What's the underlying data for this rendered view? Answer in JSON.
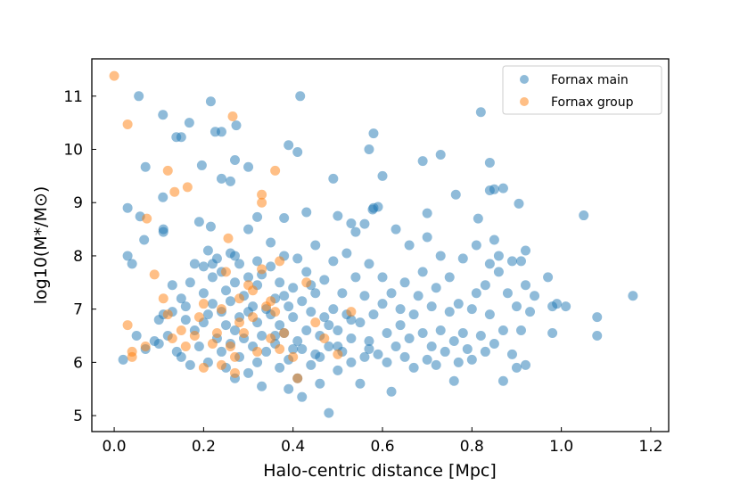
{
  "chart_data": {
    "type": "scatter",
    "title": "",
    "xlabel": "Halo-centric distance [Mpc]",
    "ylabel": "log10(M*/M⊙)",
    "xlim": [
      -0.05,
      1.24
    ],
    "ylim": [
      4.7,
      11.7
    ],
    "xticks": [
      "0.0",
      "0.2",
      "0.4",
      "0.6",
      "0.8",
      "1.0",
      "1.2"
    ],
    "xtick_values": [
      0,
      0.2,
      0.4,
      0.6,
      0.8,
      1.0,
      1.2
    ],
    "yticks": [
      "5",
      "6",
      "7",
      "8",
      "9",
      "10",
      "11"
    ],
    "ytick_values": [
      5,
      6,
      7,
      8,
      9,
      10,
      11
    ],
    "grid": false,
    "legend_position": "top-right",
    "series": [
      {
        "name": "Fornax main",
        "color": "#1f77b4",
        "points": [
          [
            0.055,
            11.0
          ],
          [
            0.416,
            11.0
          ],
          [
            0.216,
            10.9
          ],
          [
            0.109,
            10.65
          ],
          [
            0.168,
            10.5
          ],
          [
            0.139,
            10.23
          ],
          [
            0.15,
            10.23
          ],
          [
            0.226,
            10.33
          ],
          [
            0.24,
            10.33
          ],
          [
            0.273,
            10.45
          ],
          [
            0.58,
            10.3
          ],
          [
            0.57,
            10.0
          ],
          [
            0.39,
            10.08
          ],
          [
            0.41,
            9.95
          ],
          [
            0.82,
            10.7
          ],
          [
            0.73,
            9.9
          ],
          [
            0.69,
            9.78
          ],
          [
            0.84,
            9.75
          ],
          [
            0.85,
            9.25
          ],
          [
            0.87,
            9.27
          ],
          [
            0.84,
            9.23
          ],
          [
            0.905,
            8.98
          ],
          [
            1.05,
            8.76
          ],
          [
            0.6,
            9.5
          ],
          [
            0.49,
            9.45
          ],
          [
            0.196,
            9.7
          ],
          [
            0.27,
            9.8
          ],
          [
            0.3,
            9.67
          ],
          [
            0.24,
            9.45
          ],
          [
            0.07,
            9.67
          ],
          [
            0.109,
            9.1
          ],
          [
            0.26,
            9.4
          ],
          [
            0.03,
            8.9
          ],
          [
            0.058,
            8.74
          ],
          [
            0.067,
            8.3
          ],
          [
            0.19,
            8.64
          ],
          [
            0.216,
            8.55
          ],
          [
            0.38,
            8.71
          ],
          [
            0.32,
            8.73
          ],
          [
            0.43,
            8.82
          ],
          [
            0.53,
            8.61
          ],
          [
            0.578,
            8.87
          ],
          [
            0.59,
            8.92
          ],
          [
            0.7,
            8.8
          ],
          [
            0.814,
            8.7
          ],
          [
            0.764,
            9.15
          ],
          [
            0.11,
            8.45
          ],
          [
            0.11,
            8.5
          ],
          [
            0.03,
            8.0
          ],
          [
            0.04,
            7.85
          ],
          [
            0.02,
            6.05
          ],
          [
            0.05,
            6.5
          ],
          [
            0.07,
            6.25
          ],
          [
            0.09,
            6.4
          ],
          [
            0.1,
            6.35
          ],
          [
            0.1,
            6.8
          ],
          [
            0.11,
            6.9
          ],
          [
            0.12,
            6.5
          ],
          [
            0.13,
            6.95
          ],
          [
            0.13,
            7.45
          ],
          [
            0.14,
            6.2
          ],
          [
            0.15,
            6.1
          ],
          [
            0.15,
            7.2
          ],
          [
            0.16,
            6.8
          ],
          [
            0.16,
            7.05
          ],
          [
            0.17,
            5.95
          ],
          [
            0.17,
            7.5
          ],
          [
            0.18,
            6.6
          ],
          [
            0.18,
            7.85
          ],
          [
            0.19,
            6.3
          ],
          [
            0.2,
            6.75
          ],
          [
            0.2,
            7.3
          ],
          [
            0.2,
            7.8
          ],
          [
            0.21,
            6.0
          ],
          [
            0.21,
            6.9
          ],
          [
            0.21,
            8.1
          ],
          [
            0.22,
            7.1
          ],
          [
            0.22,
            7.6
          ],
          [
            0.23,
            6.45
          ],
          [
            0.23,
            7.95
          ],
          [
            0.24,
            6.2
          ],
          [
            0.24,
            6.95
          ],
          [
            0.24,
            7.7
          ],
          [
            0.25,
            5.9
          ],
          [
            0.25,
            6.7
          ],
          [
            0.25,
            7.35
          ],
          [
            0.26,
            6.35
          ],
          [
            0.26,
            7.15
          ],
          [
            0.26,
            8.05
          ],
          [
            0.27,
            5.7
          ],
          [
            0.27,
            6.6
          ],
          [
            0.27,
            7.5
          ],
          [
            0.28,
            6.1
          ],
          [
            0.28,
            6.85
          ],
          [
            0.28,
            7.85
          ],
          [
            0.29,
            6.45
          ],
          [
            0.29,
            7.25
          ],
          [
            0.3,
            5.8
          ],
          [
            0.3,
            6.95
          ],
          [
            0.3,
            7.6
          ],
          [
            0.3,
            8.5
          ],
          [
            0.31,
            6.3
          ],
          [
            0.31,
            7.05
          ],
          [
            0.32,
            6.0
          ],
          [
            0.32,
            6.75
          ],
          [
            0.32,
            7.45
          ],
          [
            0.33,
            5.55
          ],
          [
            0.33,
            6.5
          ],
          [
            0.33,
            7.65
          ],
          [
            0.34,
            6.2
          ],
          [
            0.34,
            7.0
          ],
          [
            0.35,
            6.9
          ],
          [
            0.35,
            7.8
          ],
          [
            0.35,
            8.25
          ],
          [
            0.36,
            6.35
          ],
          [
            0.36,
            7.2
          ],
          [
            0.37,
            5.9
          ],
          [
            0.37,
            6.7
          ],
          [
            0.37,
            7.5
          ],
          [
            0.38,
            6.55
          ],
          [
            0.38,
            8.0
          ],
          [
            0.39,
            5.5
          ],
          [
            0.39,
            6.05
          ],
          [
            0.39,
            7.05
          ],
          [
            0.4,
            6.85
          ],
          [
            0.4,
            7.4
          ],
          [
            0.41,
            5.7
          ],
          [
            0.41,
            6.4
          ],
          [
            0.41,
            7.95
          ],
          [
            0.42,
            5.35
          ],
          [
            0.42,
            6.25
          ],
          [
            0.42,
            7.15
          ],
          [
            0.43,
            6.6
          ],
          [
            0.43,
            7.7
          ],
          [
            0.44,
            5.95
          ],
          [
            0.44,
            6.95
          ],
          [
            0.45,
            6.15
          ],
          [
            0.45,
            7.3
          ],
          [
            0.45,
            8.2
          ],
          [
            0.46,
            5.6
          ],
          [
            0.46,
            6.5
          ],
          [
            0.47,
            6.85
          ],
          [
            0.47,
            7.55
          ],
          [
            0.48,
            5.05
          ],
          [
            0.48,
            6.3
          ],
          [
            0.49,
            7.0
          ],
          [
            0.49,
            7.9
          ],
          [
            0.5,
            5.85
          ],
          [
            0.5,
            6.6
          ],
          [
            0.5,
            8.75
          ],
          [
            0.51,
            6.2
          ],
          [
            0.51,
            7.3
          ],
          [
            0.52,
            6.9
          ],
          [
            0.52,
            8.05
          ],
          [
            0.53,
            6.0
          ],
          [
            0.53,
            6.45
          ],
          [
            0.54,
            7.6
          ],
          [
            0.54,
            8.45
          ],
          [
            0.55,
            5.6
          ],
          [
            0.55,
            6.75
          ],
          [
            0.56,
            6.1
          ],
          [
            0.56,
            7.25
          ],
          [
            0.56,
            8.6
          ],
          [
            0.57,
            6.4
          ],
          [
            0.57,
            7.85
          ],
          [
            0.58,
            6.9
          ],
          [
            0.58,
            8.9
          ],
          [
            0.59,
            6.15
          ],
          [
            0.6,
            7.1
          ],
          [
            0.6,
            7.6
          ],
          [
            0.61,
            6.0
          ],
          [
            0.61,
            6.55
          ],
          [
            0.62,
            5.45
          ],
          [
            0.62,
            7.3
          ],
          [
            0.63,
            6.3
          ],
          [
            0.63,
            8.5
          ],
          [
            0.64,
            6.7
          ],
          [
            0.64,
            7.0
          ],
          [
            0.65,
            6.1
          ],
          [
            0.65,
            7.5
          ],
          [
            0.66,
            6.45
          ],
          [
            0.66,
            8.2
          ],
          [
            0.67,
            5.9
          ],
          [
            0.67,
            6.9
          ],
          [
            0.68,
            7.25
          ],
          [
            0.69,
            6.55
          ],
          [
            0.69,
            7.7
          ],
          [
            0.7,
            6.05
          ],
          [
            0.7,
            8.35
          ],
          [
            0.71,
            6.3
          ],
          [
            0.71,
            7.05
          ],
          [
            0.72,
            5.95
          ],
          [
            0.72,
            7.4
          ],
          [
            0.73,
            6.6
          ],
          [
            0.73,
            8.0
          ],
          [
            0.74,
            6.2
          ],
          [
            0.75,
            6.95
          ],
          [
            0.75,
            7.6
          ],
          [
            0.76,
            6.4
          ],
          [
            0.76,
            5.65
          ],
          [
            0.77,
            6.0
          ],
          [
            0.77,
            7.1
          ],
          [
            0.78,
            6.55
          ],
          [
            0.78,
            7.95
          ],
          [
            0.79,
            6.25
          ],
          [
            0.8,
            7.0
          ],
          [
            0.8,
            6.05
          ],
          [
            0.81,
            7.3
          ],
          [
            0.81,
            8.2
          ],
          [
            0.82,
            6.5
          ],
          [
            0.83,
            6.2
          ],
          [
            0.83,
            7.45
          ],
          [
            0.84,
            7.85
          ],
          [
            0.84,
            6.9
          ],
          [
            0.85,
            8.3
          ],
          [
            0.85,
            6.35
          ],
          [
            0.86,
            7.7
          ],
          [
            0.86,
            8.0
          ],
          [
            0.87,
            6.6
          ],
          [
            0.87,
            5.65
          ],
          [
            0.88,
            7.3
          ],
          [
            0.89,
            6.15
          ],
          [
            0.89,
            7.9
          ],
          [
            0.9,
            5.9
          ],
          [
            0.9,
            7.05
          ],
          [
            0.91,
            7.9
          ],
          [
            0.91,
            6.6
          ],
          [
            0.92,
            5.95
          ],
          [
            0.92,
            7.45
          ],
          [
            0.92,
            8.1
          ],
          [
            0.93,
            6.95
          ],
          [
            0.94,
            7.25
          ],
          [
            0.97,
            7.6
          ],
          [
            0.98,
            7.05
          ],
          [
            0.98,
            6.55
          ],
          [
            0.99,
            7.1
          ],
          [
            1.01,
            7.05
          ],
          [
            1.08,
            6.85
          ],
          [
            1.08,
            6.5
          ],
          [
            1.16,
            7.25
          ],
          [
            0.5,
            6.3
          ],
          [
            0.46,
            6.1
          ],
          [
            0.4,
            6.25
          ],
          [
            0.36,
            6.5
          ],
          [
            0.48,
            6.7
          ],
          [
            0.53,
            6.8
          ],
          [
            0.44,
            7.45
          ],
          [
            0.38,
            7.25
          ],
          [
            0.57,
            6.25
          ],
          [
            0.32,
            7.9
          ],
          [
            0.27,
            8.0
          ],
          [
            0.22,
            7.85
          ]
        ]
      },
      {
        "name": "Fornax group",
        "color": "#ff7f0e",
        "points": [
          [
            0.0,
            11.38
          ],
          [
            0.03,
            10.47
          ],
          [
            0.265,
            10.62
          ],
          [
            0.12,
            9.6
          ],
          [
            0.135,
            9.2
          ],
          [
            0.164,
            9.29
          ],
          [
            0.36,
            9.6
          ],
          [
            0.33,
            9.15
          ],
          [
            0.33,
            9.0
          ],
          [
            0.073,
            8.7
          ],
          [
            0.255,
            8.33
          ],
          [
            0.09,
            7.65
          ],
          [
            0.11,
            7.2
          ],
          [
            0.13,
            6.45
          ],
          [
            0.03,
            6.7
          ],
          [
            0.04,
            6.2
          ],
          [
            0.04,
            6.1
          ],
          [
            0.07,
            6.3
          ],
          [
            0.12,
            6.9
          ],
          [
            0.16,
            6.3
          ],
          [
            0.18,
            6.5
          ],
          [
            0.19,
            6.85
          ],
          [
            0.2,
            5.9
          ],
          [
            0.22,
            6.35
          ],
          [
            0.23,
            6.55
          ],
          [
            0.24,
            7.0
          ],
          [
            0.24,
            5.95
          ],
          [
            0.25,
            7.7
          ],
          [
            0.26,
            6.3
          ],
          [
            0.27,
            6.1
          ],
          [
            0.27,
            5.8
          ],
          [
            0.28,
            7.2
          ],
          [
            0.29,
            6.55
          ],
          [
            0.3,
            7.45
          ],
          [
            0.31,
            7.35
          ],
          [
            0.31,
            6.85
          ],
          [
            0.32,
            6.2
          ],
          [
            0.34,
            7.05
          ],
          [
            0.35,
            7.15
          ],
          [
            0.35,
            6.45
          ],
          [
            0.36,
            6.95
          ],
          [
            0.37,
            6.25
          ],
          [
            0.37,
            7.9
          ],
          [
            0.38,
            6.55
          ],
          [
            0.4,
            6.1
          ],
          [
            0.41,
            5.7
          ],
          [
            0.43,
            7.5
          ],
          [
            0.45,
            6.75
          ],
          [
            0.47,
            6.45
          ],
          [
            0.5,
            6.15
          ],
          [
            0.53,
            6.95
          ],
          [
            0.2,
            7.1
          ],
          [
            0.15,
            6.6
          ],
          [
            0.28,
            6.75
          ],
          [
            0.33,
            7.75
          ]
        ]
      }
    ]
  }
}
